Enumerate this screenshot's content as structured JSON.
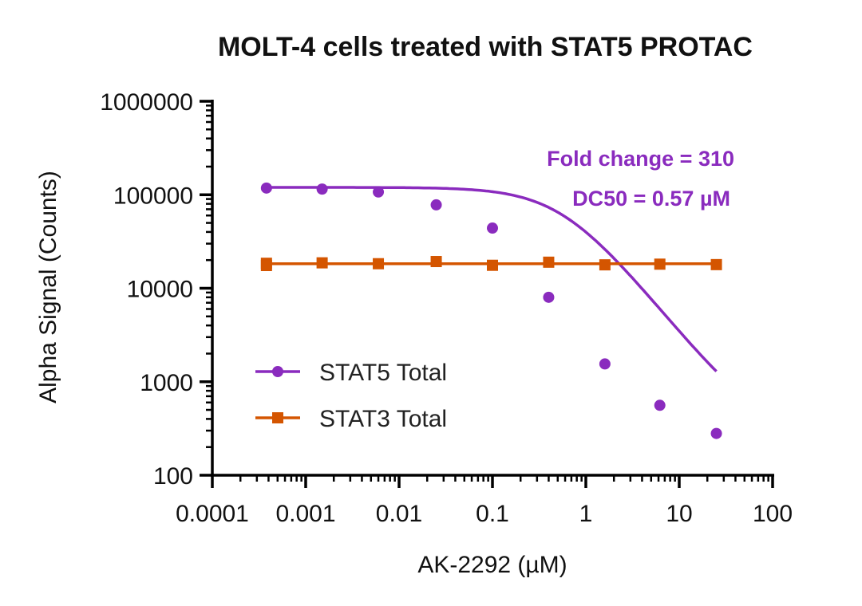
{
  "chart_data": {
    "type": "scatter",
    "title": "MOLT-4 cells treated with STAT5 PROTAC",
    "xlabel": "AK-2292 (µM)",
    "ylabel": "Alpha Signal (Counts)",
    "xscale": "log",
    "yscale": "log",
    "xlim": [
      0.0001,
      100
    ],
    "ylim": [
      100,
      1000000
    ],
    "x_ticks": [
      0.0001,
      0.001,
      0.01,
      0.1,
      1,
      10,
      100
    ],
    "x_tick_labels": [
      "0.0001",
      "0.001",
      "0.01",
      "0.1",
      "1",
      "10",
      "100"
    ],
    "y_ticks": [
      100,
      1000,
      10000,
      100000,
      1000000
    ],
    "y_tick_labels": [
      "100",
      "1000",
      "10000",
      "100000",
      "1000000"
    ],
    "legend_position": "lower-left",
    "series": [
      {
        "name": "STAT5 Total",
        "color": "#8A2BBE",
        "marker": "circle",
        "x": [
          0.00038,
          0.0015,
          0.006,
          0.025,
          0.1,
          0.4,
          1.6,
          6.2,
          25
        ],
        "y": [
          118000,
          115000,
          107000,
          78000,
          44000,
          8000,
          1550,
          560,
          280
        ],
        "fit": {
          "type": "4PL",
          "top": 120000,
          "bottom": 240,
          "ec50": 0.57,
          "hill": 1.25
        }
      },
      {
        "name": "STAT3 Total",
        "color": "#D45500",
        "marker": "square",
        "x": [
          0.00038,
          0.00038,
          0.0015,
          0.006,
          0.025,
          0.1,
          0.4,
          1.6,
          6.2,
          25
        ],
        "y": [
          18500,
          17500,
          18700,
          18300,
          19300,
          17600,
          19000,
          17800,
          18100,
          17900
        ],
        "fit": {
          "type": "flat",
          "value": 18300
        }
      }
    ],
    "annotations": [
      {
        "text": "Fold change = 310",
        "color": "#8A2BBE"
      },
      {
        "text": "DC50 = 0.57 µM",
        "color": "#8A2BBE"
      }
    ]
  }
}
